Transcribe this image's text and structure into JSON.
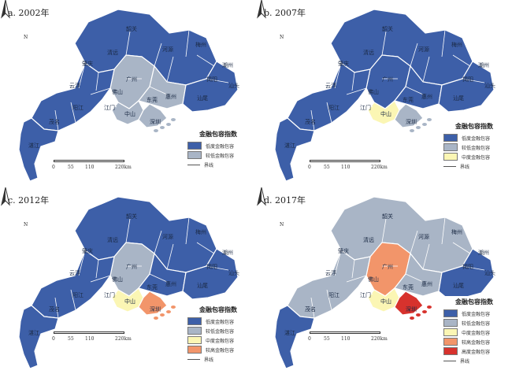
{
  "panels": [
    {
      "title": "a. 2002年",
      "north": "N",
      "scale": [
        "0",
        "55",
        "110",
        "220km"
      ],
      "legend": {
        "title": "金融包容指数",
        "items": [
          {
            "label": "低度金融包容",
            "color": "#3d5fa8"
          },
          {
            "label": "较低金融包容",
            "color": "#a9b5c6"
          }
        ],
        "boundary_label": "界线"
      },
      "region_fills": {
        "north_inland": "#3d5fa8",
        "center_core": "#a9b5c6",
        "center_east": "#a9b5c6",
        "coast_east": "#3d5fa8",
        "west_coast": "#3d5fa8",
        "sw_peninsula": "#3d5fa8",
        "delta_gz": "#a9b5c6",
        "delta_south": "#a9b5c6"
      },
      "cities": [
        "韶关",
        "清远",
        "河源",
        "梅州",
        "潮州",
        "揭阳",
        "汕头",
        "汕尾",
        "惠州",
        "东莞",
        "肇庆",
        "云浮",
        "广州",
        "佛山",
        "江门",
        "中山",
        "深圳",
        "阳江",
        "茂名",
        "湛江"
      ]
    },
    {
      "title": "b. 2007年",
      "north": "N",
      "scale": [
        "0",
        "55",
        "110",
        "220km"
      ],
      "legend": {
        "title": "金融包容指数",
        "items": [
          {
            "label": "低度金融包容",
            "color": "#3d5fa8"
          },
          {
            "label": "较低金融包容",
            "color": "#a9b5c6"
          },
          {
            "label": "中度金融包容",
            "color": "#fbf6b4"
          }
        ],
        "boundary_label": "界线"
      },
      "region_fills": {
        "north_inland": "#3d5fa8",
        "center_core": "#3d5fa8",
        "center_east": "#3d5fa8",
        "coast_east": "#3d5fa8",
        "west_coast": "#3d5fa8",
        "sw_peninsula": "#3d5fa8",
        "delta_gz": "#fbf6b4",
        "delta_south": "#a9b5c6"
      },
      "cities": [
        "韶关",
        "清远",
        "河源",
        "梅州",
        "潮州",
        "揭阳",
        "汕头",
        "汕尾",
        "惠州",
        "东莞",
        "肇庆",
        "云浮",
        "广州",
        "佛山",
        "江门",
        "中山",
        "深圳",
        "阳江",
        "茂名",
        "湛江"
      ]
    },
    {
      "title": "c. 2012年",
      "north": "N",
      "scale": [
        "0",
        "55",
        "110",
        "220km"
      ],
      "legend": {
        "title": "金融包容指数",
        "items": [
          {
            "label": "低度金融包容",
            "color": "#3d5fa8"
          },
          {
            "label": "较低金融包容",
            "color": "#a9b5c6"
          },
          {
            "label": "中度金融包容",
            "color": "#fbf6b4"
          },
          {
            "label": "较高金融包容",
            "color": "#f2956a"
          }
        ],
        "boundary_label": "界线"
      },
      "region_fills": {
        "north_inland": "#3d5fa8",
        "center_core": "#a9b5c6",
        "center_east": "#3d5fa8",
        "coast_east": "#3d5fa8",
        "west_coast": "#3d5fa8",
        "sw_peninsula": "#3d5fa8",
        "delta_gz": "#fbf6b4",
        "delta_south": "#f2956a"
      },
      "cities": [
        "韶关",
        "清远",
        "河源",
        "梅州",
        "潮州",
        "揭阳",
        "汕头",
        "汕尾",
        "惠州",
        "东莞",
        "肇庆",
        "云浮",
        "广州",
        "佛山",
        "江门",
        "中山",
        "深圳",
        "阳江",
        "茂名",
        "湛江"
      ]
    },
    {
      "title": "d. 2017年",
      "north": "N",
      "scale": [
        "0",
        "55",
        "110",
        "220km"
      ],
      "legend": {
        "title": "金融包容指数",
        "items": [
          {
            "label": "低度金融包容",
            "color": "#3d5fa8"
          },
          {
            "label": "较低金融包容",
            "color": "#a9b5c6"
          },
          {
            "label": "中度金融包容",
            "color": "#fbf6b4"
          },
          {
            "label": "较高金融包容",
            "color": "#f2956a"
          },
          {
            "label": "高度金融包容",
            "color": "#d7322d"
          }
        ],
        "boundary_label": "界线"
      },
      "region_fills": {
        "north_inland": "#a9b5c6",
        "center_core": "#f2956a",
        "center_east": "#a9b5c6",
        "coast_east": "#3d5fa8",
        "west_coast": "#a9b5c6",
        "sw_peninsula": "#3d5fa8",
        "delta_gz": "#fbf6b4",
        "delta_south": "#d7322d"
      },
      "cities": [
        "韶关",
        "清远",
        "河源",
        "梅州",
        "潮州",
        "揭阳",
        "汕头",
        "汕尾",
        "惠州",
        "东莞",
        "肇庆",
        "云浮",
        "广州",
        "佛山",
        "江门",
        "中山",
        "深圳",
        "阳江",
        "茂名",
        "湛江"
      ]
    }
  ]
}
